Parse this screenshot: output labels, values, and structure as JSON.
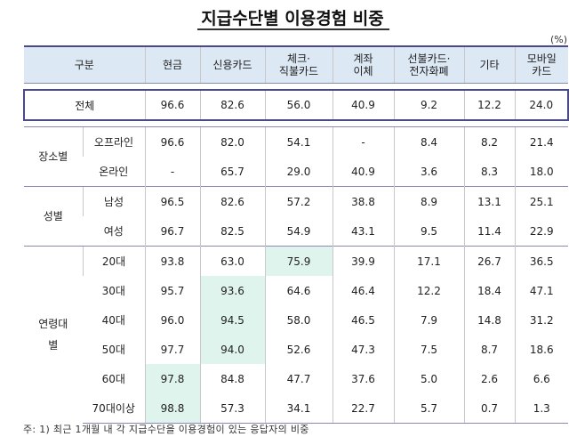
{
  "title": "지급수단별 이용경험 비중",
  "unit": "(%)",
  "headers": {
    "category": "구분",
    "cash": "현금",
    "credit": "신용카드",
    "check_line1": "체크·",
    "check_line2": "직불카드",
    "transfer_line1": "계좌",
    "transfer_line2": "이체",
    "prepaid_line1": "선불카드·",
    "prepaid_line2": "전자화폐",
    "other": "기타",
    "mobile_line1": "모바일",
    "mobile_line2": "카드"
  },
  "total": {
    "label": "전체",
    "values": [
      "96.6",
      "82.6",
      "56.0",
      "40.9",
      "9.2",
      "12.2",
      "24.0"
    ]
  },
  "place": {
    "label": "장소별",
    "rows": [
      {
        "label": "오프라인",
        "values": [
          "96.6",
          "82.0",
          "54.1",
          "-",
          "8.4",
          "8.2",
          "21.4"
        ]
      },
      {
        "label": "온라인",
        "values": [
          "-",
          "65.7",
          "29.0",
          "40.9",
          "3.6",
          "8.3",
          "18.0"
        ]
      }
    ]
  },
  "gender": {
    "label": "성별",
    "rows": [
      {
        "label": "남성",
        "values": [
          "96.5",
          "82.6",
          "57.2",
          "38.8",
          "8.9",
          "13.1",
          "25.1"
        ]
      },
      {
        "label": "여성",
        "values": [
          "96.7",
          "82.5",
          "54.9",
          "43.1",
          "9.5",
          "11.4",
          "22.9"
        ]
      }
    ]
  },
  "age": {
    "label_line1": "연령대",
    "label_line2": "별",
    "rows": [
      {
        "label": "20대",
        "values": [
          "93.8",
          "63.0",
          "75.9",
          "39.9",
          "17.1",
          "26.7",
          "36.5"
        ]
      },
      {
        "label": "30대",
        "values": [
          "95.7",
          "93.6",
          "64.6",
          "46.4",
          "12.2",
          "18.4",
          "47.1"
        ]
      },
      {
        "label": "40대",
        "values": [
          "96.0",
          "94.5",
          "58.0",
          "46.5",
          "7.9",
          "14.8",
          "31.2"
        ]
      },
      {
        "label": "50대",
        "values": [
          "97.7",
          "94.0",
          "52.6",
          "47.3",
          "7.5",
          "8.7",
          "18.6"
        ]
      },
      {
        "label": "60대",
        "values": [
          "97.8",
          "84.8",
          "47.7",
          "37.6",
          "5.0",
          "2.6",
          "6.6"
        ]
      },
      {
        "label": "70대이상",
        "values": [
          "98.8",
          "57.3",
          "34.1",
          "22.7",
          "5.7",
          "0.7",
          "1.3"
        ]
      }
    ]
  },
  "highlight_color": "#e0f4ee",
  "footnote": "주: 1) 최근 1개월 내 각 지급수단을 이용경험이 있는 응답자의 비중"
}
